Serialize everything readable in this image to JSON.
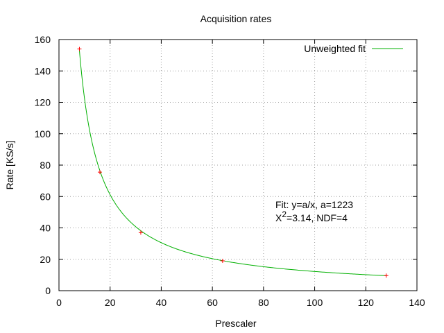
{
  "chart_data": {
    "type": "scatter",
    "title": "Acquisition rates",
    "xlabel": "Prescaler",
    "ylabel": "Rate [KS/s]",
    "xlim": [
      0,
      140
    ],
    "ylim": [
      0,
      160
    ],
    "xticks": [
      0,
      20,
      40,
      60,
      80,
      100,
      120,
      140
    ],
    "yticks": [
      0,
      20,
      40,
      60,
      80,
      100,
      120,
      140,
      160
    ],
    "grid": true,
    "legend_position": "top-right",
    "points": {
      "color": "#ff0000",
      "x": [
        8,
        16,
        32,
        64,
        128
      ],
      "y": [
        154,
        75.5,
        37,
        19,
        9.6
      ]
    },
    "series": [
      {
        "name": "Unweighted fit",
        "color": "#00b000",
        "function": "a/x",
        "a": 1223,
        "x_range": [
          8,
          128
        ]
      }
    ],
    "annotation": {
      "line1": "Fit: y=a/x, a=1223",
      "chi_symbol": "X",
      "chi_exp": "2",
      "line2_rest": "=3.14, NDF=4"
    }
  }
}
